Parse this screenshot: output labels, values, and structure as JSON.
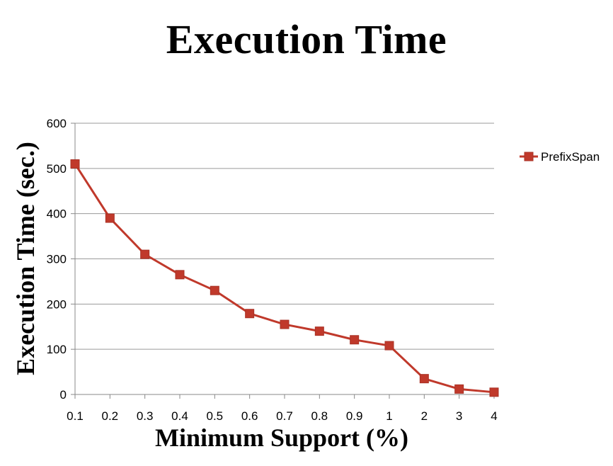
{
  "chart_data": {
    "type": "line",
    "title": "Execution Time",
    "xlabel": "Minimum Support (%)",
    "ylabel": "Execution Time (sec.)",
    "categories": [
      "0.1",
      "0.2",
      "0.3",
      "0.4",
      "0.5",
      "0.6",
      "0.7",
      "0.8",
      "0.9",
      "1",
      "2",
      "3",
      "4"
    ],
    "series": [
      {
        "name": "PrefixSpan",
        "values": [
          510,
          390,
          310,
          265,
          230,
          179,
          155,
          140,
          121,
          108,
          35,
          12,
          5
        ],
        "color": "#c0392b"
      }
    ],
    "ylim": [
      0,
      600
    ],
    "yticks": [
      0,
      100,
      200,
      300,
      400,
      500,
      600
    ],
    "grid": true,
    "legend": "right"
  }
}
